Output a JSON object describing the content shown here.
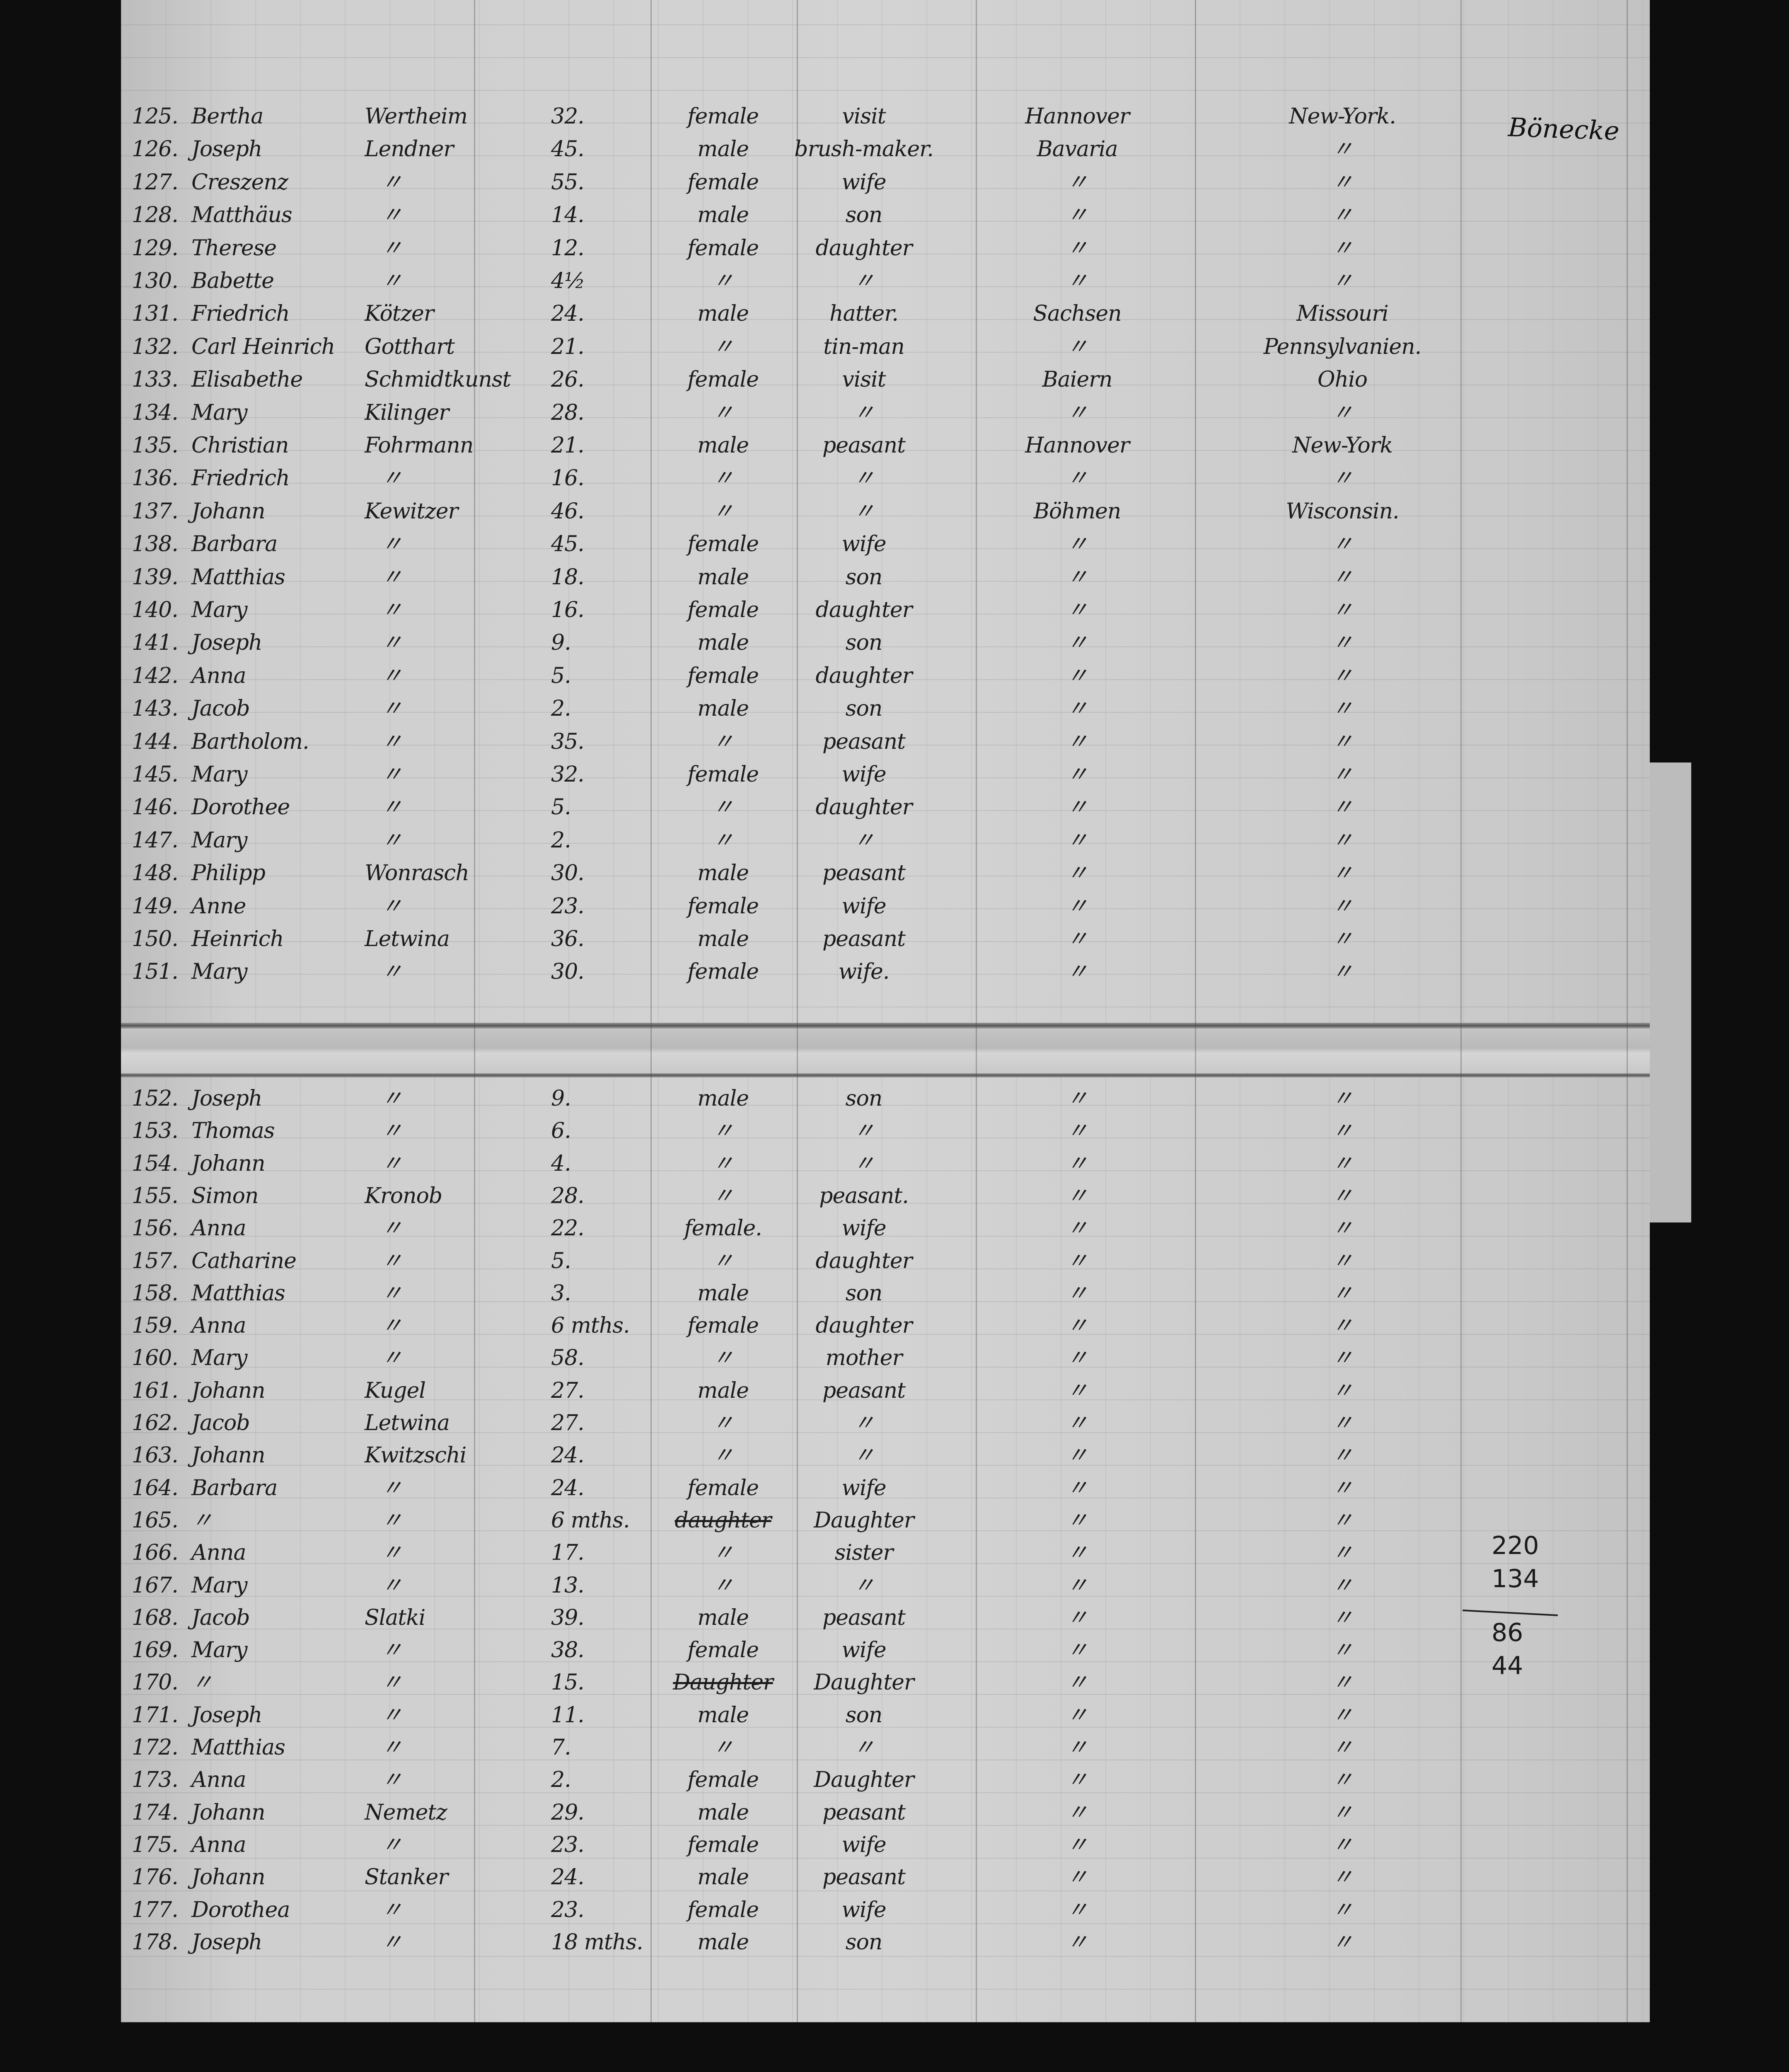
{
  "document": {
    "signature": "Bönecke",
    "tally": [
      "220",
      "134",
      "86",
      "44"
    ],
    "rows": [
      {
        "no": "125.",
        "first": "Bertha",
        "last": "Wertheim",
        "age": "32.",
        "sex": "female",
        "occupation": "visit",
        "country": "Hannover",
        "destination": "New-York."
      },
      {
        "no": "126.",
        "first": "Joseph",
        "last": "Lendner",
        "age": "45.",
        "sex": "male",
        "occupation": "brush-maker.",
        "country": "Bavaria",
        "destination": "〃"
      },
      {
        "no": "127.",
        "first": "Creszenz",
        "last": "〃",
        "age": "55.",
        "sex": "female",
        "occupation": "wife",
        "country": "〃",
        "destination": "〃"
      },
      {
        "no": "128.",
        "first": "Matthäus",
        "last": "〃",
        "age": "14.",
        "sex": "male",
        "occupation": "son",
        "country": "〃",
        "destination": "〃"
      },
      {
        "no": "129.",
        "first": "Therese",
        "last": "〃",
        "age": "12.",
        "sex": "female",
        "occupation": "daughter",
        "country": "〃",
        "destination": "〃"
      },
      {
        "no": "130.",
        "first": "Babette",
        "last": "〃",
        "age": "4½",
        "sex": "〃",
        "occupation": "〃",
        "country": "〃",
        "destination": "〃"
      },
      {
        "no": "131.",
        "first": "Friedrich",
        "last": "Kötzer",
        "age": "24.",
        "sex": "male",
        "occupation": "hatter.",
        "country": "Sachsen",
        "destination": "Missouri"
      },
      {
        "no": "132.",
        "first": "Carl Heinrich",
        "last": "Gotthart",
        "age": "21.",
        "sex": "〃",
        "occupation": "tin-man",
        "country": "〃",
        "destination": "Pennsylvanien."
      },
      {
        "no": "133.",
        "first": "Elisabethe",
        "last": "Schmidtkunst",
        "age": "26.",
        "sex": "female",
        "occupation": "visit",
        "country": "Baiern",
        "destination": "Ohio"
      },
      {
        "no": "134.",
        "first": "Mary",
        "last": "Kilinger",
        "age": "28.",
        "sex": "〃",
        "occupation": "〃",
        "country": "〃",
        "destination": "〃"
      },
      {
        "no": "135.",
        "first": "Christian",
        "last": "Fohrmann",
        "age": "21.",
        "sex": "male",
        "occupation": "peasant",
        "country": "Hannover",
        "destination": "New-York"
      },
      {
        "no": "136.",
        "first": "Friedrich",
        "last": "〃",
        "age": "16.",
        "sex": "〃",
        "occupation": "〃",
        "country": "〃",
        "destination": "〃"
      },
      {
        "no": "137.",
        "first": "Johann",
        "last": "Kewitzer",
        "age": "46.",
        "sex": "〃",
        "occupation": "〃",
        "country": "Böhmen",
        "destination": "Wisconsin."
      },
      {
        "no": "138.",
        "first": "Barbara",
        "last": "〃",
        "age": "45.",
        "sex": "female",
        "occupation": "wife",
        "country": "〃",
        "destination": "〃"
      },
      {
        "no": "139.",
        "first": "Matthias",
        "last": "〃",
        "age": "18.",
        "sex": "male",
        "occupation": "son",
        "country": "〃",
        "destination": "〃"
      },
      {
        "no": "140.",
        "first": "Mary",
        "last": "〃",
        "age": "16.",
        "sex": "female",
        "occupation": "daughter",
        "country": "〃",
        "destination": "〃"
      },
      {
        "no": "141.",
        "first": "Joseph",
        "last": "〃",
        "age": "9.",
        "sex": "male",
        "occupation": "son",
        "country": "〃",
        "destination": "〃"
      },
      {
        "no": "142.",
        "first": "Anna",
        "last": "〃",
        "age": "5.",
        "sex": "female",
        "occupation": "daughter",
        "country": "〃",
        "destination": "〃"
      },
      {
        "no": "143.",
        "first": "Jacob",
        "last": "〃",
        "age": "2.",
        "sex": "male",
        "occupation": "son",
        "country": "〃",
        "destination": "〃"
      },
      {
        "no": "144.",
        "first": "Bartholom.",
        "last": "〃",
        "age": "35.",
        "sex": "〃",
        "occupation": "peasant",
        "country": "〃",
        "destination": "〃"
      },
      {
        "no": "145.",
        "first": "Mary",
        "last": "〃",
        "age": "32.",
        "sex": "female",
        "occupation": "wife",
        "country": "〃",
        "destination": "〃"
      },
      {
        "no": "146.",
        "first": "Dorothee",
        "last": "〃",
        "age": "5.",
        "sex": "〃",
        "occupation": "daughter",
        "country": "〃",
        "destination": "〃"
      },
      {
        "no": "147.",
        "first": "Mary",
        "last": "〃",
        "age": "2.",
        "sex": "〃",
        "occupation": "〃",
        "country": "〃",
        "destination": "〃"
      },
      {
        "no": "148.",
        "first": "Philipp",
        "last": "Wonrasch",
        "age": "30.",
        "sex": "male",
        "occupation": "peasant",
        "country": "〃",
        "destination": "〃"
      },
      {
        "no": "149.",
        "first": "Anne",
        "last": "〃",
        "age": "23.",
        "sex": "female",
        "occupation": "wife",
        "country": "〃",
        "destination": "〃"
      },
      {
        "no": "150.",
        "first": "Heinrich",
        "last": "Letwina",
        "age": "36.",
        "sex": "male",
        "occupation": "peasant",
        "country": "〃",
        "destination": "〃"
      },
      {
        "no": "151.",
        "first": "Mary",
        "last": "〃",
        "age": "30.",
        "sex": "female",
        "occupation": "wife.",
        "country": "〃",
        "destination": "〃"
      },
      {
        "no": "152.",
        "first": "Joseph",
        "last": "〃",
        "age": "9.",
        "sex": "male",
        "occupation": "son",
        "country": "〃",
        "destination": "〃"
      },
      {
        "no": "153.",
        "first": "Thomas",
        "last": "〃",
        "age": "6.",
        "sex": "〃",
        "occupation": "〃",
        "country": "〃",
        "destination": "〃"
      },
      {
        "no": "154.",
        "first": "Johann",
        "last": "〃",
        "age": "4.",
        "sex": "〃",
        "occupation": "〃",
        "country": "〃",
        "destination": "〃"
      },
      {
        "no": "155.",
        "first": "Simon",
        "last": "Kronob",
        "age": "28.",
        "sex": "〃",
        "occupation": "peasant.",
        "country": "〃",
        "destination": "〃"
      },
      {
        "no": "156.",
        "first": "Anna",
        "last": "〃",
        "age": "22.",
        "sex": "female.",
        "occupation": "wife",
        "country": "〃",
        "destination": "〃"
      },
      {
        "no": "157.",
        "first": "Catharine",
        "last": "〃",
        "age": "5.",
        "sex": "〃",
        "occupation": "daughter",
        "country": "〃",
        "destination": "〃"
      },
      {
        "no": "158.",
        "first": "Matthias",
        "last": "〃",
        "age": "3.",
        "sex": "male",
        "occupation": "son",
        "country": "〃",
        "destination": "〃"
      },
      {
        "no": "159.",
        "first": "Anna",
        "last": "〃",
        "age": "6 mths.",
        "sex": "female",
        "occupation": "daughter",
        "country": "〃",
        "destination": "〃"
      },
      {
        "no": "160.",
        "first": "Mary",
        "last": "〃",
        "age": "58.",
        "sex": "〃",
        "occupation": "mother",
        "country": "〃",
        "destination": "〃"
      },
      {
        "no": "161.",
        "first": "Johann",
        "last": "Kugel",
        "age": "27.",
        "sex": "male",
        "occupation": "peasant",
        "country": "〃",
        "destination": "〃"
      },
      {
        "no": "162.",
        "first": "Jacob",
        "last": "Letwina",
        "age": "27.",
        "sex": "〃",
        "occupation": "〃",
        "country": "〃",
        "destination": "〃"
      },
      {
        "no": "163.",
        "first": "Johann",
        "last": "Kwitzschi",
        "age": "24.",
        "sex": "〃",
        "occupation": "〃",
        "country": "〃",
        "destination": "〃"
      },
      {
        "no": "164.",
        "first": "Barbara",
        "last": "〃",
        "age": "24.",
        "sex": "female",
        "occupation": "wife",
        "country": "〃",
        "destination": "〃"
      },
      {
        "no": "165.",
        "first": "〃",
        "last": "〃",
        "age": "6 mths.",
        "sex": "daughter",
        "occupation": "Daughter",
        "country": "〃",
        "destination": "〃",
        "struck": true
      },
      {
        "no": "166.",
        "first": "Anna",
        "last": "〃",
        "age": "17.",
        "sex": "〃",
        "occupation": "sister",
        "country": "〃",
        "destination": "〃"
      },
      {
        "no": "167.",
        "first": "Mary",
        "last": "〃",
        "age": "13.",
        "sex": "〃",
        "occupation": "〃",
        "country": "〃",
        "destination": "〃"
      },
      {
        "no": "168.",
        "first": "Jacob",
        "last": "Slatki",
        "age": "39.",
        "sex": "male",
        "occupation": "peasant",
        "country": "〃",
        "destination": "〃"
      },
      {
        "no": "169.",
        "first": "Mary",
        "last": "〃",
        "age": "38.",
        "sex": "female",
        "occupation": "wife",
        "country": "〃",
        "destination": "〃"
      },
      {
        "no": "170.",
        "first": "〃",
        "last": "〃",
        "age": "15.",
        "sex": "Daughter",
        "occupation": "Daughter",
        "country": "〃",
        "destination": "〃",
        "struck": true
      },
      {
        "no": "171.",
        "first": "Joseph",
        "last": "〃",
        "age": "11.",
        "sex": "male",
        "occupation": "son",
        "country": "〃",
        "destination": "〃"
      },
      {
        "no": "172.",
        "first": "Matthias",
        "last": "〃",
        "age": "7.",
        "sex": "〃",
        "occupation": "〃",
        "country": "〃",
        "destination": "〃"
      },
      {
        "no": "173.",
        "first": "Anna",
        "last": "〃",
        "age": "2.",
        "sex": "female",
        "occupation": "Daughter",
        "country": "〃",
        "destination": "〃"
      },
      {
        "no": "174.",
        "first": "Johann",
        "last": "Nemetz",
        "age": "29.",
        "sex": "male",
        "occupation": "peasant",
        "country": "〃",
        "destination": "〃"
      },
      {
        "no": "175.",
        "first": "Anna",
        "last": "〃",
        "age": "23.",
        "sex": "female",
        "occupation": "wife",
        "country": "〃",
        "destination": "〃"
      },
      {
        "no": "176.",
        "first": "Johann",
        "last": "Stanker",
        "age": "24.",
        "sex": "male",
        "occupation": "peasant",
        "country": "〃",
        "destination": "〃"
      },
      {
        "no": "177.",
        "first": "Dorothea",
        "last": "〃",
        "age": "23.",
        "sex": "female",
        "occupation": "wife",
        "country": "〃",
        "destination": "〃"
      },
      {
        "no": "178.",
        "first": "Joseph",
        "last": "〃",
        "age": "18 mths.",
        "sex": "male",
        "occupation": "son",
        "country": "〃",
        "destination": "〃"
      }
    ]
  }
}
